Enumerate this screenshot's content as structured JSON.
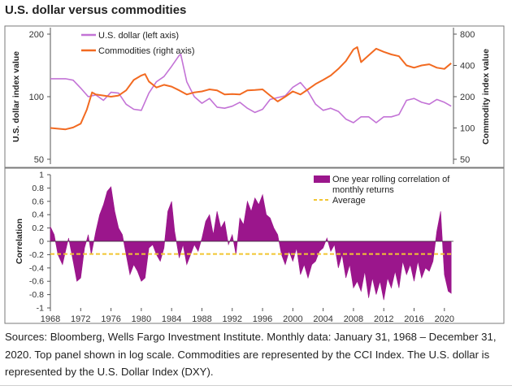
{
  "title": "U.S. dollar versus commodities",
  "source_note": "Sources: Bloomberg, Wells Fargo Investment Institute. Monthly data: January 31, 1968 – December 31, 2020. Top panel shown in log scale. Commodities are represented by the CCI Index. The U.S. dollar is represented by the U.S. Dollar Index (DXY).",
  "colors": {
    "dollar": "#c373d6",
    "commodities": "#f26a21",
    "correlation": "#9b168c",
    "average": "#f2c531",
    "frame": "#7a7a7a"
  },
  "chart_data": [
    {
      "type": "line",
      "ylabel": "U.S. dollar index value",
      "y2label": "Commodity index value",
      "yscale": "log",
      "ylim": [
        50,
        200
      ],
      "y2lim": [
        50,
        800
      ],
      "yticks": [
        "200",
        "100",
        "50"
      ],
      "y2ticks": [
        "800",
        "400",
        "200",
        "100",
        "50"
      ],
      "legend_position": "top-left",
      "series": [
        {
          "name": "U.S. dollar (left axis)",
          "axis": "left",
          "x": [
            1968,
            1970,
            1971,
            1972,
            1973,
            1974,
            1975,
            1976,
            1977,
            1978,
            1979,
            1980,
            1981,
            1982,
            1983,
            1984,
            1985,
            1985.2,
            1986,
            1987,
            1988,
            1989,
            1990,
            1991,
            1992,
            1993,
            1994,
            1995,
            1996,
            1997,
            1998,
            1999,
            2000,
            2001,
            2002,
            2003,
            2004,
            2005,
            2006,
            2007,
            2008,
            2009,
            2010,
            2011,
            2012,
            2013,
            2014,
            2015,
            2016,
            2017,
            2018,
            2019,
            2020,
            2020.9
          ],
          "y": [
            122,
            122,
            120,
            110,
            100,
            102,
            96,
            105,
            104,
            92,
            87,
            86,
            104,
            118,
            125,
            140,
            158,
            160,
            118,
            100,
            93,
            98,
            89,
            88,
            90,
            94,
            88,
            84,
            87,
            97,
            99,
            101,
            111,
            117,
            106,
            92,
            86,
            88,
            85,
            78,
            75,
            80,
            80,
            75,
            80,
            80,
            82,
            96,
            98,
            94,
            92,
            97,
            94,
            90
          ]
        },
        {
          "name": "Commodities (right axis)",
          "axis": "right",
          "x": [
            1968,
            1970,
            1971,
            1972,
            1972.8,
            1973.5,
            1974,
            1975,
            1976,
            1977,
            1978,
            1979,
            1980,
            1980.5,
            1981,
            1982,
            1983,
            1984,
            1985,
            1986,
            1987,
            1988,
            1989,
            1990,
            1991,
            1992,
            1993,
            1994,
            1995,
            1996,
            1997,
            1998,
            1999,
            2000,
            2001,
            2002,
            2003,
            2004,
            2005,
            2006,
            2007,
            2008,
            2008.5,
            2009,
            2010,
            2011,
            2012,
            2013,
            2014,
            2015,
            2016,
            2017,
            2018,
            2019,
            2020,
            2020.9
          ],
          "y": [
            100,
            97,
            101,
            110,
            150,
            220,
            210,
            205,
            200,
            205,
            230,
            290,
            320,
            330,
            280,
            245,
            260,
            250,
            230,
            210,
            220,
            225,
            235,
            230,
            210,
            212,
            210,
            230,
            232,
            235,
            205,
            180,
            200,
            225,
            210,
            235,
            265,
            290,
            320,
            370,
            440,
            570,
            600,
            430,
            500,
            580,
            540,
            510,
            490,
            400,
            380,
            400,
            410,
            380,
            370,
            420
          ]
        }
      ]
    },
    {
      "type": "area",
      "ylabel": "Correlation",
      "ylim": [
        -1,
        1
      ],
      "yticks": [
        "1",
        "0.8",
        "0.6",
        "0.4",
        "0.2",
        "0",
        "-0.2",
        "-0.4",
        "-0.6",
        "-0.8",
        "-1"
      ],
      "xticks": [
        "1968",
        "1972",
        "1976",
        "1980",
        "1984",
        "1988",
        "1992",
        "1996",
        "2000",
        "2004",
        "2008",
        "2012",
        "2016",
        "2020"
      ],
      "legend_position": "top-right",
      "series": [
        {
          "name": "One year rolling correlation of monthly returns",
          "x": [
            1968,
            1968.5,
            1969,
            1969.6,
            1970,
            1970.4,
            1971,
            1971.5,
            1972,
            1972.5,
            1973,
            1973.4,
            1974,
            1974.5,
            1975,
            1975.5,
            1976,
            1976.5,
            1977,
            1977.5,
            1978,
            1978.5,
            1979,
            1979.5,
            1980,
            1980.5,
            1981,
            1981.5,
            1982,
            1982.5,
            1983,
            1983.5,
            1984,
            1984.4,
            1985,
            1985.5,
            1986,
            1986.5,
            1987,
            1987.5,
            1988,
            1988.5,
            1989,
            1989.5,
            1990,
            1990.5,
            1991,
            1991.5,
            1992,
            1992.5,
            1993,
            1993.5,
            1994,
            1994.5,
            1995,
            1995.5,
            1996,
            1996.5,
            1997,
            1997.5,
            1998,
            1998.5,
            1999,
            1999.5,
            2000,
            2000.5,
            2001,
            2001.5,
            2002,
            2002.5,
            2003,
            2003.5,
            2004,
            2004.5,
            2005,
            2005.5,
            2006,
            2006.5,
            2007,
            2007.5,
            2008,
            2008.5,
            2009,
            2009.5,
            2010,
            2010.5,
            2011,
            2011.5,
            2012,
            2012.5,
            2013,
            2013.5,
            2014,
            2014.5,
            2015,
            2015.5,
            2016,
            2016.5,
            2017,
            2017.5,
            2018,
            2018.5,
            2019,
            2019.5,
            2020,
            2020.5,
            2020.9
          ],
          "y": [
            0.22,
            0.1,
            -0.2,
            -0.35,
            -0.15,
            0.05,
            -0.3,
            -0.6,
            -0.55,
            -0.1,
            0.1,
            -0.2,
            0.15,
            0.4,
            0.55,
            0.75,
            0.82,
            0.45,
            0.2,
            0.1,
            -0.2,
            -0.5,
            -0.35,
            -0.45,
            -0.6,
            -0.55,
            -0.1,
            -0.05,
            -0.2,
            -0.3,
            -0.1,
            0.45,
            0.6,
            0.15,
            -0.25,
            -0.05,
            -0.35,
            -0.2,
            -0.05,
            -0.15,
            0.05,
            0.3,
            0.4,
            0.1,
            0.45,
            0.2,
            0.3,
            -0.05,
            0.1,
            -0.2,
            0.35,
            0.25,
            0.6,
            0.45,
            0.65,
            0.55,
            0.7,
            0.4,
            0.35,
            0.2,
            0.1,
            -0.2,
            -0.35,
            -0.15,
            -0.3,
            -0.1,
            -0.5,
            -0.35,
            -0.55,
            -0.35,
            -0.3,
            -0.15,
            -0.1,
            0.05,
            -0.15,
            -0.05,
            -0.4,
            -0.2,
            -0.55,
            -0.35,
            -0.7,
            -0.6,
            -0.75,
            -0.45,
            -0.85,
            -0.55,
            -0.8,
            -0.6,
            -0.88,
            -0.55,
            -0.7,
            -0.45,
            -0.7,
            -0.3,
            -0.5,
            -0.35,
            -0.6,
            -0.3,
            -0.55,
            -0.4,
            -0.45,
            -0.3,
            0.15,
            0.45,
            -0.5,
            -0.75,
            -0.78
          ]
        },
        {
          "name": "Average",
          "values": [
            -0.19
          ]
        }
      ]
    }
  ]
}
